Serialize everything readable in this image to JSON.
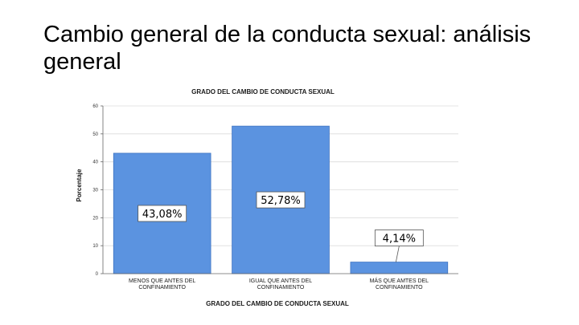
{
  "slide": {
    "title": "Cambio general de la conducta sexual: análisis general"
  },
  "colors": {
    "bar": "#5b93e0",
    "bar_stroke": "#3f74c2",
    "grid": "#dcdcdc",
    "axis": "#666666"
  },
  "chart_data": {
    "type": "bar",
    "title": "GRADO DEL CAMBIO DE CONDUCTA SEXUAL",
    "xlabel": "GRADO DEL CAMBIO DE CONDUCTA SEXUAL",
    "ylabel": "Porcentaje",
    "ylim": [
      0,
      60
    ],
    "yticks": [
      "0",
      "10",
      "20",
      "30",
      "40",
      "50",
      "60"
    ],
    "grid": true,
    "categories": [
      [
        "MENOS QUE ANTES DEL",
        "CONFINAMIENTO"
      ],
      [
        "IGUAL QUE ANTES DEL",
        "CONFINAMIENTO"
      ],
      [
        "MÁS QUE AMTES DEL",
        "CONFINAMIENTO"
      ]
    ],
    "values": [
      43.08,
      52.78,
      4.14
    ],
    "data_labels": [
      "43,08%",
      "52,78%",
      "4,14%"
    ]
  }
}
